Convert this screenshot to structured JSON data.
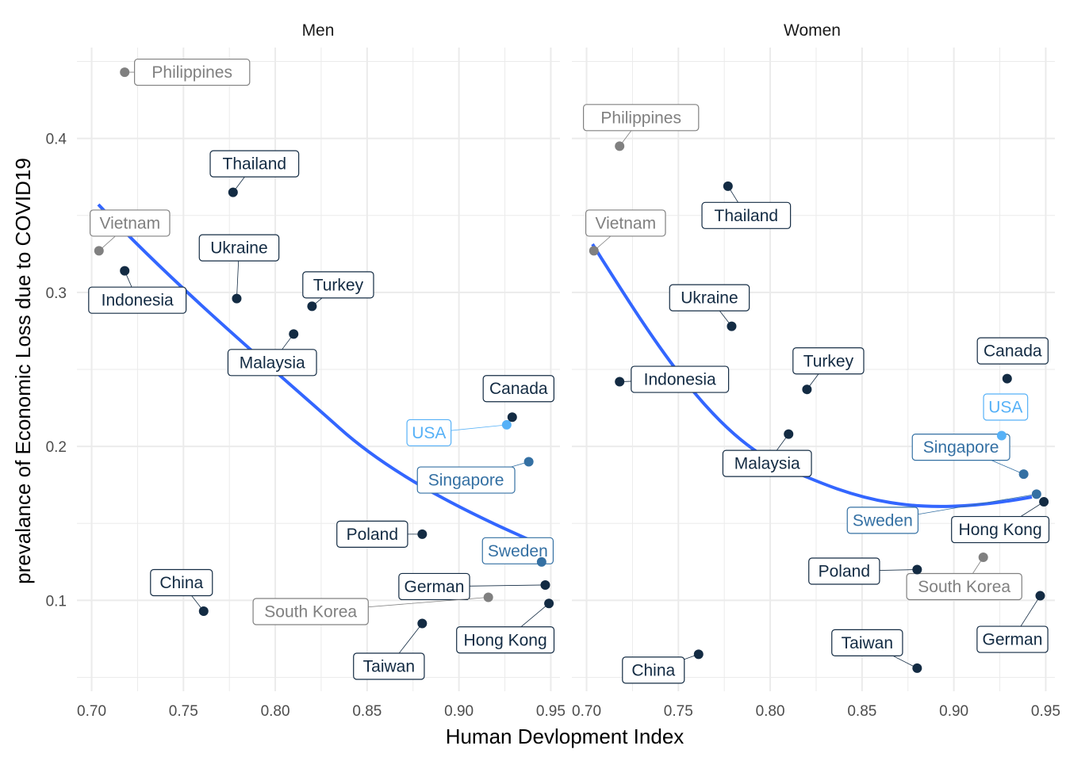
{
  "chart_data": {
    "type": "scatter",
    "xlabel": "Human Devlopment Index",
    "ylabel": "prevalance of Economic Loss due to COVID19",
    "xlim": [
      0.692,
      0.955
    ],
    "ylim": [
      0.041,
      0.459
    ],
    "x_ticks": [
      "0.70",
      "0.75",
      "0.80",
      "0.85",
      "0.90",
      "0.95"
    ],
    "y_ticks": [
      "0.1",
      "0.2",
      "0.3",
      "0.4"
    ],
    "grid": true,
    "legend": "none",
    "smooth_line_color": "#3366FF",
    "colors": {
      "dark": "#132B43",
      "mid": "#3470A3",
      "light": "#56B1F7",
      "grey": "#808080"
    },
    "panels": [
      {
        "title": "Men",
        "points": [
          {
            "name": "Philippines",
            "x": 0.718,
            "y": 0.443,
            "color": "grey"
          },
          {
            "name": "Thailand",
            "x": 0.777,
            "y": 0.365,
            "color": "dark"
          },
          {
            "name": "Vietnam",
            "x": 0.704,
            "y": 0.327,
            "color": "grey"
          },
          {
            "name": "Indonesia",
            "x": 0.718,
            "y": 0.314,
            "color": "dark"
          },
          {
            "name": "Ukraine",
            "x": 0.779,
            "y": 0.296,
            "color": "dark"
          },
          {
            "name": "Turkey",
            "x": 0.82,
            "y": 0.291,
            "color": "dark"
          },
          {
            "name": "Malaysia",
            "x": 0.81,
            "y": 0.273,
            "color": "dark"
          },
          {
            "name": "Canada",
            "x": 0.929,
            "y": 0.219,
            "color": "dark"
          },
          {
            "name": "USA",
            "x": 0.926,
            "y": 0.214,
            "color": "light"
          },
          {
            "name": "Singapore",
            "x": 0.938,
            "y": 0.19,
            "color": "mid"
          },
          {
            "name": "Poland",
            "x": 0.88,
            "y": 0.143,
            "color": "dark"
          },
          {
            "name": "Sweden",
            "x": 0.945,
            "y": 0.125,
            "color": "mid"
          },
          {
            "name": "German",
            "x": 0.947,
            "y": 0.11,
            "color": "dark"
          },
          {
            "name": "South Korea",
            "x": 0.916,
            "y": 0.102,
            "color": "grey"
          },
          {
            "name": "Hong Kong",
            "x": 0.949,
            "y": 0.098,
            "color": "dark"
          },
          {
            "name": "China",
            "x": 0.761,
            "y": 0.093,
            "color": "dark"
          },
          {
            "name": "Taiwan",
            "x": 0.88,
            "y": 0.085,
            "color": "dark"
          }
        ]
      },
      {
        "title": "Women",
        "points": [
          {
            "name": "Philippines",
            "x": 0.718,
            "y": 0.395,
            "color": "grey"
          },
          {
            "name": "Thailand",
            "x": 0.777,
            "y": 0.369,
            "color": "dark"
          },
          {
            "name": "Vietnam",
            "x": 0.704,
            "y": 0.327,
            "color": "grey"
          },
          {
            "name": "Ukraine",
            "x": 0.779,
            "y": 0.278,
            "color": "dark"
          },
          {
            "name": "Canada",
            "x": 0.929,
            "y": 0.244,
            "color": "dark"
          },
          {
            "name": "Indonesia",
            "x": 0.718,
            "y": 0.242,
            "color": "dark"
          },
          {
            "name": "Turkey",
            "x": 0.82,
            "y": 0.237,
            "color": "dark"
          },
          {
            "name": "Malaysia",
            "x": 0.81,
            "y": 0.208,
            "color": "dark"
          },
          {
            "name": "USA",
            "x": 0.926,
            "y": 0.207,
            "color": "light"
          },
          {
            "name": "Singapore",
            "x": 0.938,
            "y": 0.182,
            "color": "mid"
          },
          {
            "name": "Sweden",
            "x": 0.945,
            "y": 0.169,
            "color": "mid"
          },
          {
            "name": "Hong Kong",
            "x": 0.949,
            "y": 0.164,
            "color": "dark"
          },
          {
            "name": "South Korea",
            "x": 0.916,
            "y": 0.128,
            "color": "grey"
          },
          {
            "name": "Poland",
            "x": 0.88,
            "y": 0.12,
            "color": "dark"
          },
          {
            "name": "German",
            "x": 0.947,
            "y": 0.103,
            "color": "dark"
          },
          {
            "name": "China",
            "x": 0.761,
            "y": 0.065,
            "color": "dark"
          },
          {
            "name": "Taiwan",
            "x": 0.88,
            "y": 0.056,
            "color": "dark"
          }
        ]
      }
    ]
  }
}
